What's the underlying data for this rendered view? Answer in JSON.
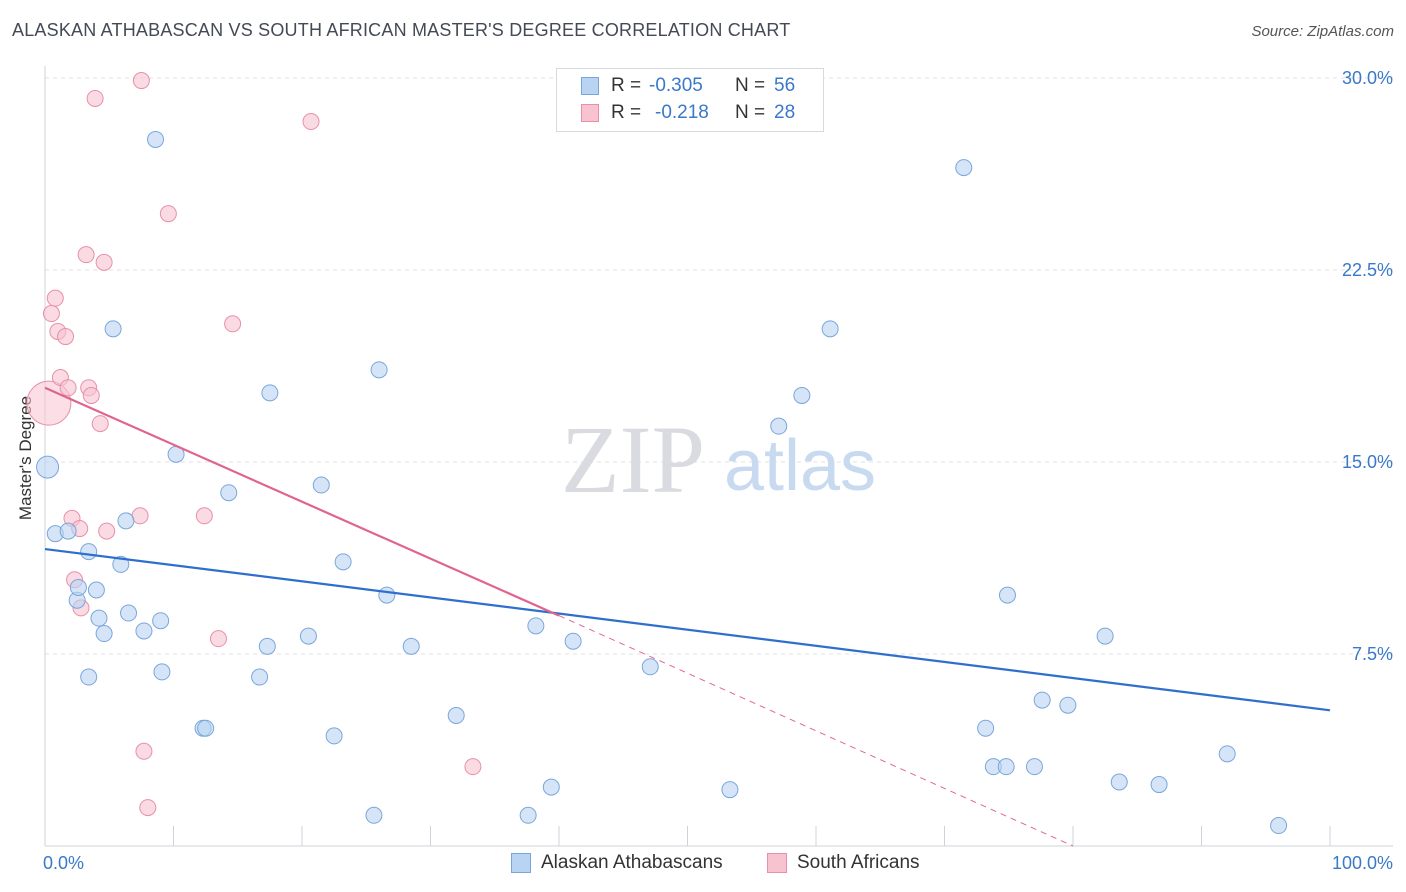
{
  "title": "ALASKAN ATHABASCAN VS SOUTH AFRICAN MASTER'S DEGREE CORRELATION CHART",
  "source": "Source: ZipAtlas.com",
  "watermark": {
    "zip": "ZIP",
    "atlas": "atlas"
  },
  "legend": {
    "rows": [
      {
        "r_label": "R =",
        "r_value": "-0.305",
        "n_label": "N =",
        "n_value": "56"
      },
      {
        "r_label": "R =",
        "r_value": "-0.218",
        "n_label": "N =",
        "n_value": "28"
      }
    ]
  },
  "colors": {
    "blue_fill": "#b9d3f2",
    "blue_stroke": "#7aa6dc",
    "blue_line": "#2e6fce",
    "pink_fill": "#f7c3d1",
    "pink_stroke": "#e890a8",
    "pink_line": "#e0648f",
    "axis_text": "#3a78c9",
    "grid": "#dde1e6"
  },
  "chart_data": {
    "type": "scatter",
    "title": "ALASKAN ATHABASCAN VS SOUTH AFRICAN MASTER'S DEGREE CORRELATION CHART",
    "xlabel": "",
    "ylabel": "Master's Degree",
    "xlim": [
      0,
      100
    ],
    "ylim": [
      0,
      30
    ],
    "x_tick_labels": [
      "0.0%",
      "100.0%"
    ],
    "y_ticks": [
      7.5,
      15.0,
      22.5,
      30.0
    ],
    "y_tick_labels": [
      "7.5%",
      "15.0%",
      "22.5%",
      "30.0%"
    ],
    "grid": "horizontal dashed",
    "legend_position": "top-center",
    "series": [
      {
        "name": "Alaskan Athabascans",
        "color": "#b9d3f2",
        "r": -0.305,
        "n": 56,
        "trend": {
          "x": [
            0,
            100
          ],
          "y": [
            11.6,
            5.3
          ]
        },
        "points": [
          [
            0.2,
            14.8
          ],
          [
            0.8,
            12.2
          ],
          [
            1.8,
            12.3
          ],
          [
            2.5,
            9.6
          ],
          [
            2.6,
            10.1
          ],
          [
            3.4,
            6.6
          ],
          [
            3.4,
            11.5
          ],
          [
            4.0,
            10.0
          ],
          [
            4.2,
            8.9
          ],
          [
            4.6,
            8.3
          ],
          [
            5.3,
            20.2
          ],
          [
            5.9,
            11.0
          ],
          [
            6.3,
            12.7
          ],
          [
            6.5,
            9.1
          ],
          [
            7.7,
            8.4
          ],
          [
            8.6,
            27.6
          ],
          [
            9.0,
            8.8
          ],
          [
            9.1,
            6.8
          ],
          [
            10.2,
            15.3
          ],
          [
            12.3,
            4.6
          ],
          [
            12.5,
            4.6
          ],
          [
            14.3,
            13.8
          ],
          [
            16.7,
            6.6
          ],
          [
            17.3,
            7.8
          ],
          [
            17.5,
            17.7
          ],
          [
            20.5,
            8.2
          ],
          [
            21.5,
            14.1
          ],
          [
            22.5,
            4.3
          ],
          [
            23.2,
            11.1
          ],
          [
            25.6,
            1.2
          ],
          [
            26.0,
            18.6
          ],
          [
            26.6,
            9.8
          ],
          [
            28.5,
            7.8
          ],
          [
            32.0,
            5.1
          ],
          [
            37.6,
            1.2
          ],
          [
            38.2,
            8.6
          ],
          [
            39.4,
            2.3
          ],
          [
            41.1,
            8.0
          ],
          [
            47.1,
            7.0
          ],
          [
            53.3,
            2.2
          ],
          [
            57.1,
            16.4
          ],
          [
            58.9,
            17.6
          ],
          [
            61.1,
            20.2
          ],
          [
            71.5,
            26.5
          ],
          [
            73.2,
            4.6
          ],
          [
            73.8,
            3.1
          ],
          [
            74.8,
            3.1
          ],
          [
            74.9,
            9.8
          ],
          [
            77.0,
            3.1
          ],
          [
            77.6,
            5.7
          ],
          [
            79.6,
            5.5
          ],
          [
            82.5,
            8.2
          ],
          [
            83.6,
            2.5
          ],
          [
            86.7,
            2.4
          ],
          [
            92.0,
            3.6
          ],
          [
            96.0,
            0.8
          ]
        ]
      },
      {
        "name": "South Africans",
        "color": "#f7c3d1",
        "r": -0.218,
        "n": 28,
        "trend": {
          "x": [
            0,
            40
          ],
          "y": [
            17.9,
            9.0
          ]
        },
        "trend_extension": {
          "x": [
            40,
            80
          ],
          "y": [
            9.0,
            0.0
          ]
        },
        "points": [
          [
            0.3,
            17.3
          ],
          [
            0.5,
            20.8
          ],
          [
            0.8,
            21.4
          ],
          [
            1.0,
            20.1
          ],
          [
            1.2,
            18.3
          ],
          [
            1.6,
            19.9
          ],
          [
            1.8,
            17.9
          ],
          [
            2.1,
            12.8
          ],
          [
            2.3,
            10.4
          ],
          [
            2.7,
            12.4
          ],
          [
            2.8,
            9.3
          ],
          [
            3.2,
            23.1
          ],
          [
            3.4,
            17.9
          ],
          [
            3.6,
            17.6
          ],
          [
            3.9,
            29.2
          ],
          [
            4.3,
            16.5
          ],
          [
            4.6,
            22.8
          ],
          [
            4.8,
            12.3
          ],
          [
            7.4,
            12.9
          ],
          [
            7.5,
            29.9
          ],
          [
            7.7,
            3.7
          ],
          [
            8.0,
            1.5
          ],
          [
            9.6,
            24.7
          ],
          [
            12.4,
            12.9
          ],
          [
            13.5,
            8.1
          ],
          [
            14.6,
            20.4
          ],
          [
            20.7,
            28.3
          ],
          [
            33.3,
            3.1
          ]
        ]
      }
    ]
  }
}
